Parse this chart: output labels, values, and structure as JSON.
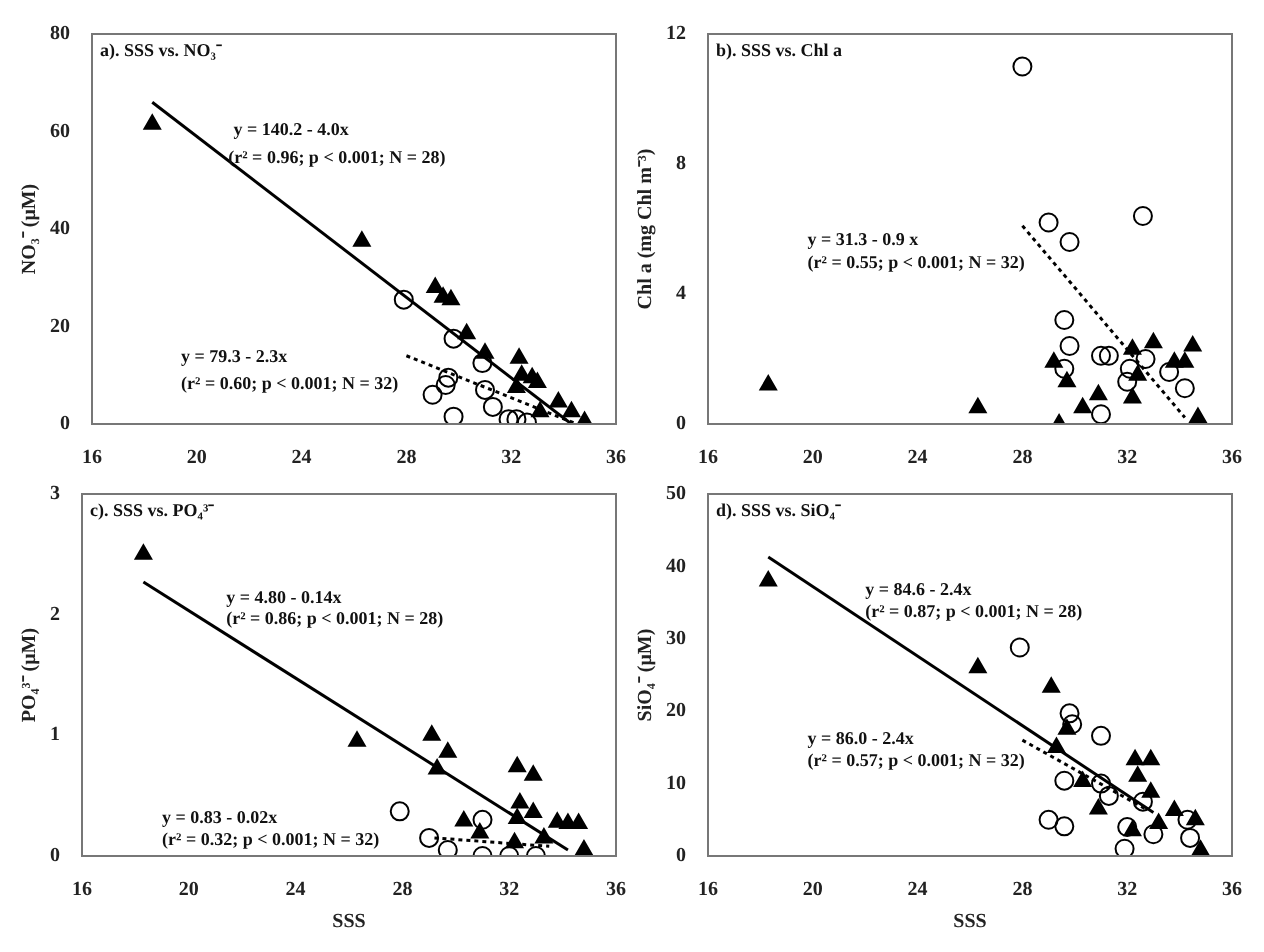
{
  "chart_data": [
    {
      "type": "scatter",
      "title": "a). SSS vs. NO₃⁻",
      "ylabel": "NO₃⁻ (μM)",
      "xlim": [
        16,
        36
      ],
      "xticks": [
        16,
        20,
        24,
        28,
        32,
        36
      ],
      "ylim": [
        0,
        80
      ],
      "yticks": [
        0,
        20,
        40,
        60,
        80
      ],
      "grid": false,
      "legend": false,
      "annotations": [
        "y = 140.2 - 4.0x",
        "(r² = 0.96; p < 0.001; N = 28)",
        "y = 79.3 - 2.3x",
        "(r² = 0.60; p < 0.001; N = 32)"
      ],
      "series": [
        {
          "color": "#000000",
          "marker": "triangle",
          "x": [
            18.3,
            26.3,
            29.1,
            29.4,
            29.7,
            30.3,
            31,
            32.3,
            32.2,
            32.4,
            32.8,
            33,
            33.1,
            33.8,
            34.3,
            34.8
          ],
          "values": [
            61.5,
            37.5,
            28,
            26,
            25.5,
            18.5,
            14.5,
            13.5,
            7.5,
            10,
            9.5,
            8.5,
            2.5,
            4.5,
            2.5,
            0.5
          ]
        },
        {
          "color": "#000000",
          "marker": "circle",
          "x": [
            27.9,
            29,
            29.5,
            29.6,
            29.8,
            29.8,
            30.9,
            31,
            31.3,
            31.9,
            32.2,
            32.6
          ],
          "values": [
            25.5,
            6,
            8,
            9.5,
            17.5,
            1.5,
            12.5,
            7,
            3.5,
            1,
            1,
            0.3
          ]
        },
        {
          "type": "line",
          "color": "#000000",
          "marker": "none",
          "line_style": "solid",
          "x": [
            18.3,
            34.3
          ],
          "values": [
            66,
            0
          ]
        },
        {
          "type": "line",
          "color": "#000000",
          "marker": "none",
          "line_style": "dotted",
          "x": [
            28,
            34.5
          ],
          "values": [
            14,
            0
          ]
        }
      ]
    },
    {
      "type": "scatter",
      "title": "b). SSS vs. Chl a",
      "ylabel": "Chl a (mg Chl m⁻³)",
      "xlim": [
        16,
        36
      ],
      "xticks": [
        16,
        20,
        24,
        28,
        32,
        36
      ],
      "ylim": [
        0,
        12
      ],
      "yticks": [
        0,
        4,
        8,
        12
      ],
      "grid": false,
      "legend": false,
      "annotations": [
        "y = 31.3 - 0.9 x",
        "(r² = 0.55; p < 0.001; N = 32)"
      ],
      "series": [
        {
          "color": "#000000",
          "marker": "triangle",
          "x": [
            18.3,
            26.3,
            29.2,
            29.4,
            29.7,
            30.3,
            30.9,
            32.2,
            32.2,
            32.4,
            33,
            33.8,
            34.2,
            34.5,
            34.7
          ],
          "values": [
            1.2,
            0.5,
            1.9,
            0,
            1.3,
            0.5,
            0.9,
            2.3,
            0.8,
            1.5,
            2.5,
            1.9,
            1.9,
            2.4,
            0.2
          ]
        },
        {
          "color": "#000000",
          "marker": "circle",
          "x": [
            28,
            29,
            29.8,
            29.6,
            29.8,
            29.6,
            31,
            31.3,
            31,
            32,
            32.1,
            32.6,
            32.7,
            33.6,
            34.2
          ],
          "values": [
            11,
            6.2,
            5.6,
            3.2,
            2.4,
            1.7,
            2.1,
            2.1,
            0.3,
            1.3,
            1.7,
            6.4,
            2,
            1.6,
            1.1
          ]
        },
        {
          "type": "line",
          "color": "#000000",
          "marker": "none",
          "line_style": "dotted",
          "x": [
            28,
            34.2
          ],
          "values": [
            6.1,
            0.2
          ]
        }
      ]
    },
    {
      "type": "scatter",
      "title": "c). SSS vs. PO₄³⁻",
      "xlabel": "SSS",
      "ylabel": "PO₄³⁻ (μM)",
      "xlim": [
        16,
        36
      ],
      "xticks": [
        16,
        20,
        24,
        28,
        32,
        36
      ],
      "ylim": [
        0,
        3
      ],
      "yticks": [
        0,
        1,
        2,
        3
      ],
      "grid": false,
      "legend": false,
      "annotations": [
        "y = 4.80 - 0.14x",
        "(r² = 0.86; p < 0.001; N = 28)",
        "y = 0.83 - 0.02x",
        "(r² = 0.32; p < 0.001; N = 32)"
      ],
      "series": [
        {
          "color": "#000000",
          "marker": "triangle",
          "x": [
            18.3,
            26.3,
            29.1,
            29.3,
            29.7,
            30.3,
            30.9,
            32.3,
            32.4,
            32.3,
            32.2,
            32.9,
            32.9,
            33.3,
            33.8,
            34.2,
            34.6,
            34.8
          ],
          "values": [
            2.5,
            0.95,
            1,
            0.72,
            0.86,
            0.29,
            0.19,
            0.74,
            0.44,
            0.31,
            0.11,
            0.67,
            0.36,
            0.15,
            0.28,
            0.27,
            0.27,
            0.05
          ]
        },
        {
          "color": "#000000",
          "marker": "circle",
          "x": [
            27.9,
            29,
            29.7,
            31,
            31,
            32,
            33
          ],
          "values": [
            0.37,
            0.15,
            0.05,
            0.3,
            0,
            0,
            0
          ]
        },
        {
          "type": "line",
          "color": "#000000",
          "marker": "none",
          "line_style": "solid",
          "x": [
            18.3,
            34.2
          ],
          "values": [
            2.27,
            0.05
          ]
        },
        {
          "type": "line",
          "color": "#000000",
          "marker": "none",
          "line_style": "dotted",
          "x": [
            29.2,
            33.5
          ],
          "values": [
            0.15,
            0.08
          ]
        }
      ]
    },
    {
      "type": "scatter",
      "title": "d). SSS vs. SiO₄⁻",
      "xlabel": "SSS",
      "ylabel": "SiO₄⁻ (μM)",
      "xlim": [
        16,
        36
      ],
      "xticks": [
        16,
        20,
        24,
        28,
        32,
        36
      ],
      "ylim": [
        0,
        50
      ],
      "yticks": [
        0,
        10,
        20,
        30,
        40,
        50
      ],
      "grid": false,
      "legend": false,
      "annotations": [
        "y = 84.6 - 2.4x",
        "(r² = 0.87; p < 0.001; N = 28)",
        "y = 86.0 - 2.4x",
        "(r² = 0.57; p < 0.001; N = 32)"
      ],
      "series": [
        {
          "color": "#000000",
          "marker": "triangle",
          "x": [
            18.3,
            26.3,
            29.1,
            29.3,
            29.7,
            30.3,
            30.9,
            32.2,
            32.3,
            32.4,
            32.9,
            32.9,
            33.2,
            33.8,
            34.6,
            34.8
          ],
          "values": [
            38,
            26,
            23.3,
            15,
            17.5,
            10.3,
            6.5,
            3.5,
            13.3,
            11,
            13.3,
            8.8,
            4.5,
            6.3,
            5,
            0.8
          ]
        },
        {
          "color": "#000000",
          "marker": "circle",
          "x": [
            27.9,
            29,
            29.6,
            29.6,
            29.8,
            29.9,
            31,
            31,
            31.3,
            31.9,
            32,
            32.6,
            33,
            34.3,
            34.4
          ],
          "values": [
            28.8,
            5,
            10.4,
            4.1,
            19.7,
            18.2,
            16.6,
            10,
            8.3,
            1,
            4,
            7.5,
            3,
            5,
            2.5
          ]
        },
        {
          "type": "line",
          "color": "#000000",
          "marker": "none",
          "line_style": "solid",
          "x": [
            18.3,
            33
          ],
          "values": [
            41.3,
            6
          ]
        },
        {
          "type": "line",
          "color": "#000000",
          "marker": "none",
          "line_style": "dotted",
          "x": [
            28,
            32.7
          ],
          "values": [
            16,
            6.5
          ]
        }
      ]
    }
  ]
}
